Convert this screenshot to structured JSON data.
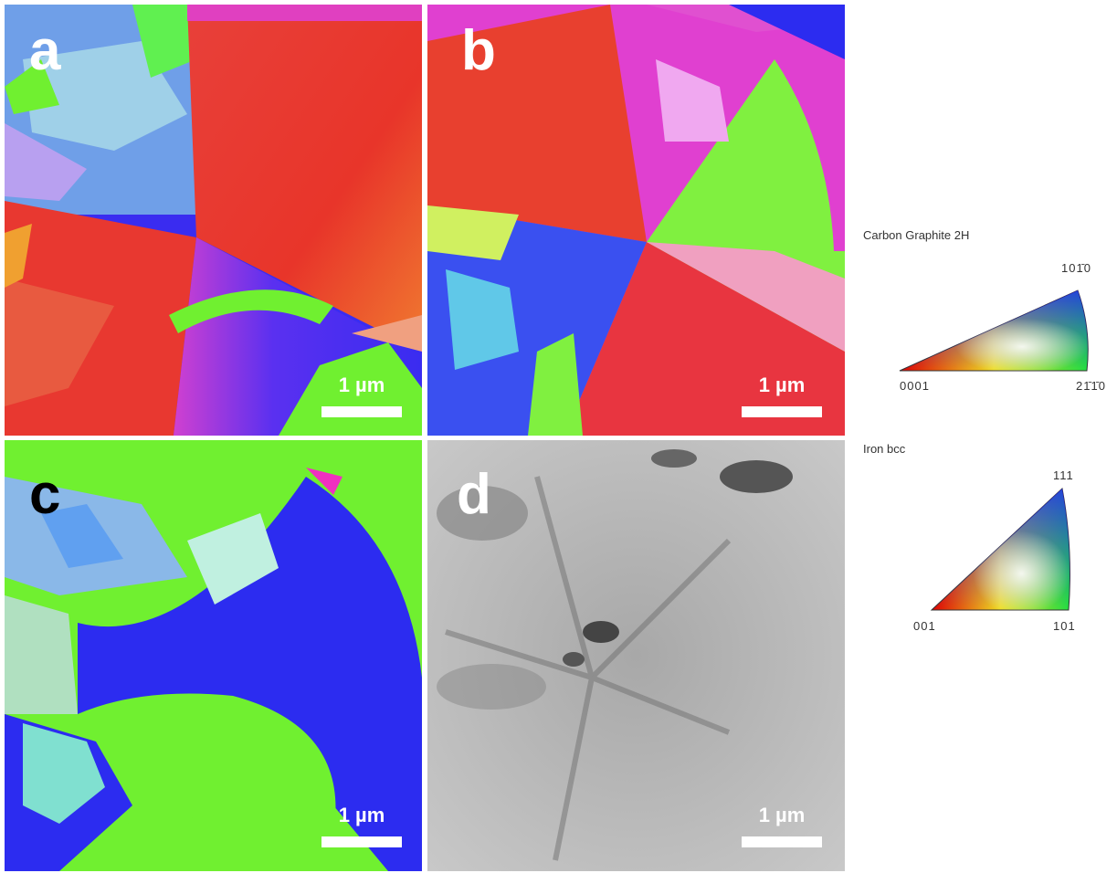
{
  "panels": [
    {
      "label": "a",
      "scale_bar": "1 µm"
    },
    {
      "label": "b",
      "scale_bar": "1 µm"
    },
    {
      "label": "c",
      "scale_bar": "1 µm"
    },
    {
      "label": "d",
      "scale_bar": "1 µm"
    }
  ],
  "legend": [
    {
      "title": "Carbon  Graphite 2H",
      "top": "101̄0",
      "left": "0001",
      "right": "21̄1̄0"
    },
    {
      "title": "Iron bcc",
      "top": "111",
      "left": "001",
      "right": "101"
    }
  ]
}
